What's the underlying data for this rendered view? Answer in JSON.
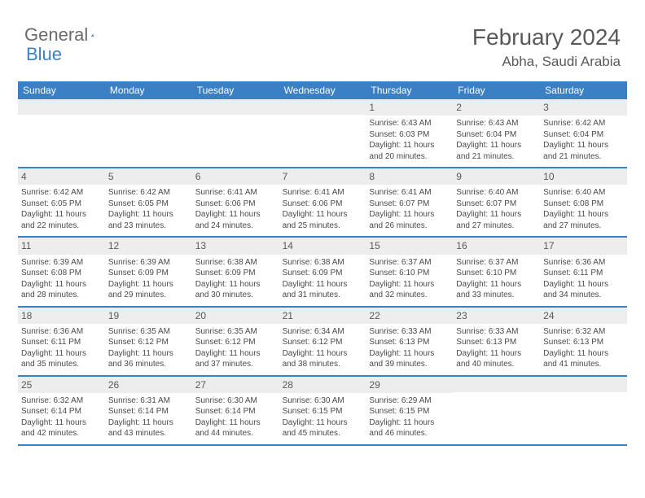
{
  "brand": {
    "part1": "General",
    "part2": "Blue"
  },
  "header": {
    "title": "February 2024",
    "location": "Abha, Saudi Arabia"
  },
  "colors": {
    "accent": "#3b7fc4",
    "header_text": "#595959",
    "daynum_bg": "#ededed",
    "body_text": "#4a4a4a",
    "page_bg": "#ffffff"
  },
  "typography": {
    "title_fontsize": 28,
    "location_fontsize": 17,
    "dow_fontsize": 12,
    "daynum_fontsize": 12,
    "body_fontsize": 10
  },
  "dow": [
    "Sunday",
    "Monday",
    "Tuesday",
    "Wednesday",
    "Thursday",
    "Friday",
    "Saturday"
  ],
  "weeks": [
    [
      {
        "n": "",
        "sunrise": "",
        "sunset": "",
        "daylight": ""
      },
      {
        "n": "",
        "sunrise": "",
        "sunset": "",
        "daylight": ""
      },
      {
        "n": "",
        "sunrise": "",
        "sunset": "",
        "daylight": ""
      },
      {
        "n": "",
        "sunrise": "",
        "sunset": "",
        "daylight": ""
      },
      {
        "n": "1",
        "sunrise": "Sunrise: 6:43 AM",
        "sunset": "Sunset: 6:03 PM",
        "daylight": "Daylight: 11 hours and 20 minutes."
      },
      {
        "n": "2",
        "sunrise": "Sunrise: 6:43 AM",
        "sunset": "Sunset: 6:04 PM",
        "daylight": "Daylight: 11 hours and 21 minutes."
      },
      {
        "n": "3",
        "sunrise": "Sunrise: 6:42 AM",
        "sunset": "Sunset: 6:04 PM",
        "daylight": "Daylight: 11 hours and 21 minutes."
      }
    ],
    [
      {
        "n": "4",
        "sunrise": "Sunrise: 6:42 AM",
        "sunset": "Sunset: 6:05 PM",
        "daylight": "Daylight: 11 hours and 22 minutes."
      },
      {
        "n": "5",
        "sunrise": "Sunrise: 6:42 AM",
        "sunset": "Sunset: 6:05 PM",
        "daylight": "Daylight: 11 hours and 23 minutes."
      },
      {
        "n": "6",
        "sunrise": "Sunrise: 6:41 AM",
        "sunset": "Sunset: 6:06 PM",
        "daylight": "Daylight: 11 hours and 24 minutes."
      },
      {
        "n": "7",
        "sunrise": "Sunrise: 6:41 AM",
        "sunset": "Sunset: 6:06 PM",
        "daylight": "Daylight: 11 hours and 25 minutes."
      },
      {
        "n": "8",
        "sunrise": "Sunrise: 6:41 AM",
        "sunset": "Sunset: 6:07 PM",
        "daylight": "Daylight: 11 hours and 26 minutes."
      },
      {
        "n": "9",
        "sunrise": "Sunrise: 6:40 AM",
        "sunset": "Sunset: 6:07 PM",
        "daylight": "Daylight: 11 hours and 27 minutes."
      },
      {
        "n": "10",
        "sunrise": "Sunrise: 6:40 AM",
        "sunset": "Sunset: 6:08 PM",
        "daylight": "Daylight: 11 hours and 27 minutes."
      }
    ],
    [
      {
        "n": "11",
        "sunrise": "Sunrise: 6:39 AM",
        "sunset": "Sunset: 6:08 PM",
        "daylight": "Daylight: 11 hours and 28 minutes."
      },
      {
        "n": "12",
        "sunrise": "Sunrise: 6:39 AM",
        "sunset": "Sunset: 6:09 PM",
        "daylight": "Daylight: 11 hours and 29 minutes."
      },
      {
        "n": "13",
        "sunrise": "Sunrise: 6:38 AM",
        "sunset": "Sunset: 6:09 PM",
        "daylight": "Daylight: 11 hours and 30 minutes."
      },
      {
        "n": "14",
        "sunrise": "Sunrise: 6:38 AM",
        "sunset": "Sunset: 6:09 PM",
        "daylight": "Daylight: 11 hours and 31 minutes."
      },
      {
        "n": "15",
        "sunrise": "Sunrise: 6:37 AM",
        "sunset": "Sunset: 6:10 PM",
        "daylight": "Daylight: 11 hours and 32 minutes."
      },
      {
        "n": "16",
        "sunrise": "Sunrise: 6:37 AM",
        "sunset": "Sunset: 6:10 PM",
        "daylight": "Daylight: 11 hours and 33 minutes."
      },
      {
        "n": "17",
        "sunrise": "Sunrise: 6:36 AM",
        "sunset": "Sunset: 6:11 PM",
        "daylight": "Daylight: 11 hours and 34 minutes."
      }
    ],
    [
      {
        "n": "18",
        "sunrise": "Sunrise: 6:36 AM",
        "sunset": "Sunset: 6:11 PM",
        "daylight": "Daylight: 11 hours and 35 minutes."
      },
      {
        "n": "19",
        "sunrise": "Sunrise: 6:35 AM",
        "sunset": "Sunset: 6:12 PM",
        "daylight": "Daylight: 11 hours and 36 minutes."
      },
      {
        "n": "20",
        "sunrise": "Sunrise: 6:35 AM",
        "sunset": "Sunset: 6:12 PM",
        "daylight": "Daylight: 11 hours and 37 minutes."
      },
      {
        "n": "21",
        "sunrise": "Sunrise: 6:34 AM",
        "sunset": "Sunset: 6:12 PM",
        "daylight": "Daylight: 11 hours and 38 minutes."
      },
      {
        "n": "22",
        "sunrise": "Sunrise: 6:33 AM",
        "sunset": "Sunset: 6:13 PM",
        "daylight": "Daylight: 11 hours and 39 minutes."
      },
      {
        "n": "23",
        "sunrise": "Sunrise: 6:33 AM",
        "sunset": "Sunset: 6:13 PM",
        "daylight": "Daylight: 11 hours and 40 minutes."
      },
      {
        "n": "24",
        "sunrise": "Sunrise: 6:32 AM",
        "sunset": "Sunset: 6:13 PM",
        "daylight": "Daylight: 11 hours and 41 minutes."
      }
    ],
    [
      {
        "n": "25",
        "sunrise": "Sunrise: 6:32 AM",
        "sunset": "Sunset: 6:14 PM",
        "daylight": "Daylight: 11 hours and 42 minutes."
      },
      {
        "n": "26",
        "sunrise": "Sunrise: 6:31 AM",
        "sunset": "Sunset: 6:14 PM",
        "daylight": "Daylight: 11 hours and 43 minutes."
      },
      {
        "n": "27",
        "sunrise": "Sunrise: 6:30 AM",
        "sunset": "Sunset: 6:14 PM",
        "daylight": "Daylight: 11 hours and 44 minutes."
      },
      {
        "n": "28",
        "sunrise": "Sunrise: 6:30 AM",
        "sunset": "Sunset: 6:15 PM",
        "daylight": "Daylight: 11 hours and 45 minutes."
      },
      {
        "n": "29",
        "sunrise": "Sunrise: 6:29 AM",
        "sunset": "Sunset: 6:15 PM",
        "daylight": "Daylight: 11 hours and 46 minutes."
      },
      {
        "n": "",
        "sunrise": "",
        "sunset": "",
        "daylight": ""
      },
      {
        "n": "",
        "sunrise": "",
        "sunset": "",
        "daylight": ""
      }
    ]
  ]
}
